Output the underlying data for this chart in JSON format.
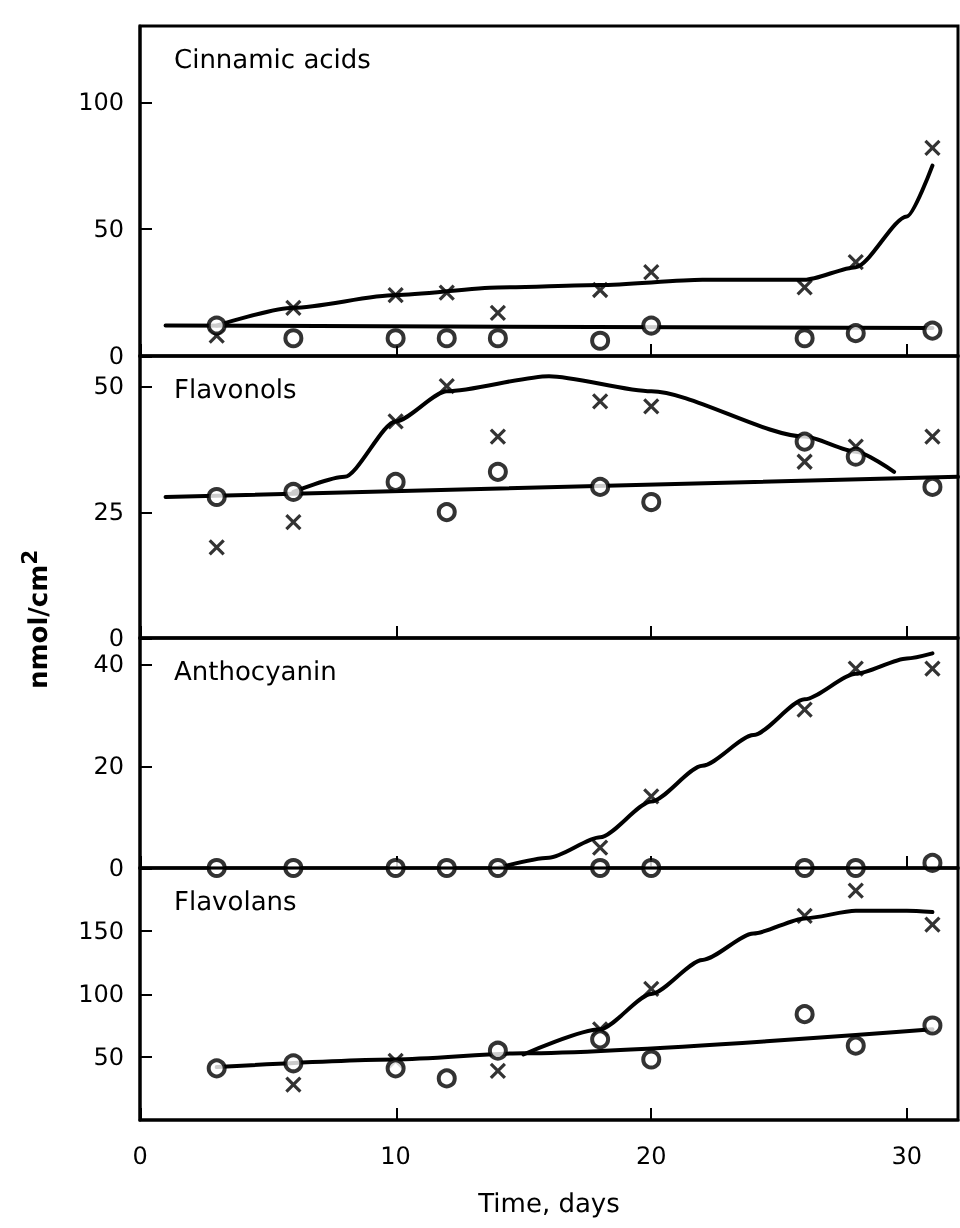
{
  "chart_data": [
    {
      "type": "scatter",
      "title": "Cinnamic acids",
      "x": [
        3,
        6,
        10,
        12,
        14,
        18,
        20,
        26,
        28,
        31
      ],
      "xlim": [
        0,
        32
      ],
      "xticks": [
        0,
        10,
        20,
        30
      ],
      "ylim": [
        0,
        130
      ],
      "yticks": [
        0,
        50,
        100
      ],
      "tick_labels": "y",
      "grid": false,
      "series": [
        {
          "color": "#000000",
          "marker": "cross",
          "values": [
            8,
            19,
            24,
            25,
            17,
            26,
            33,
            27,
            37,
            82
          ]
        },
        {
          "color": "#000000",
          "marker": "circle",
          "values": [
            12,
            7,
            7,
            7,
            7,
            6,
            12,
            7,
            9,
            10
          ]
        },
        {
          "type": "line",
          "color": "#000000",
          "marker": "none",
          "x": [
            3,
            6,
            10,
            14,
            18,
            22,
            26,
            28,
            30,
            31
          ],
          "values": [
            12,
            19,
            24,
            27,
            28,
            30,
            30,
            35,
            55,
            75
          ]
        },
        {
          "type": "line",
          "color": "#000000",
          "marker": "none",
          "x": [
            1,
            31
          ],
          "values": [
            12,
            11
          ]
        }
      ]
    },
    {
      "type": "scatter",
      "title": "Flavonols",
      "ylabel": "nmol/cm$^{2}$",
      "x": [
        3,
        6,
        10,
        12,
        14,
        18,
        20,
        26,
        28,
        31
      ],
      "xlim": [
        0,
        32
      ],
      "xticks": [
        0,
        10,
        20,
        30
      ],
      "ylim": [
        0,
        56
      ],
      "yticks": [
        0,
        25,
        50
      ],
      "tick_labels": "y",
      "grid": false,
      "series": [
        {
          "color": "#000000",
          "marker": "cross",
          "values": [
            18,
            23,
            43,
            50,
            40,
            47,
            46,
            35,
            38,
            40
          ]
        },
        {
          "color": "#000000",
          "marker": "circle",
          "values": [
            28,
            29,
            31,
            25,
            33,
            30,
            27,
            39,
            36,
            30
          ]
        },
        {
          "type": "line",
          "color": "#000000",
          "marker": "none",
          "x": [
            6,
            8,
            10,
            12,
            16,
            20,
            26,
            28,
            29.5
          ],
          "values": [
            29,
            32,
            43,
            49,
            52,
            49,
            40,
            37,
            33
          ]
        },
        {
          "type": "line",
          "color": "#000000",
          "marker": "none",
          "x": [
            1,
            32
          ],
          "values": [
            28,
            32
          ]
        }
      ]
    },
    {
      "type": "scatter",
      "title": "Anthocyanin",
      "x": [
        3,
        6,
        10,
        12,
        14,
        18,
        20,
        26,
        28,
        31
      ],
      "xlim": [
        0,
        32
      ],
      "xticks": [
        0,
        10,
        20,
        30
      ],
      "ylim": [
        0,
        45
      ],
      "yticks": [
        0,
        20,
        40
      ],
      "tick_labels": "y",
      "grid": false,
      "series": [
        {
          "color": "#000000",
          "marker": "cross",
          "values": [
            null,
            null,
            null,
            null,
            null,
            4,
            14,
            31,
            39,
            39
          ]
        },
        {
          "color": "#000000",
          "marker": "circle",
          "values": [
            0,
            0,
            0,
            0,
            0,
            0,
            0,
            0,
            0,
            1
          ]
        },
        {
          "type": "line",
          "color": "#000000",
          "marker": "none",
          "x": [
            14,
            16,
            18,
            20,
            22,
            24,
            26,
            28,
            30,
            31
          ],
          "values": [
            0,
            2,
            6,
            13,
            20,
            26,
            33,
            38,
            41,
            42
          ]
        }
      ]
    },
    {
      "type": "scatter",
      "title": "Flavolans",
      "xlabel": "Time, days",
      "x": [
        3,
        6,
        10,
        12,
        14,
        18,
        20,
        26,
        28,
        31
      ],
      "xlim": [
        0,
        32
      ],
      "xticks": [
        0,
        10,
        20,
        30
      ],
      "ylim": [
        0,
        200
      ],
      "yticks": [
        50,
        100,
        150
      ],
      "grid": false,
      "series": [
        {
          "color": "#000000",
          "marker": "cross",
          "values": [
            null,
            28,
            47,
            null,
            39,
            72,
            104,
            162,
            182,
            155
          ]
        },
        {
          "color": "#000000",
          "marker": "circle",
          "values": [
            41,
            45,
            41,
            33,
            55,
            64,
            48,
            84,
            59,
            75
          ]
        },
        {
          "type": "line",
          "color": "#000000",
          "marker": "none",
          "x": [
            15,
            18,
            20,
            22,
            24,
            26,
            28,
            30,
            31
          ],
          "values": [
            52,
            72,
            100,
            127,
            148,
            160,
            166,
            166,
            165
          ]
        },
        {
          "type": "line",
          "color": "#000000",
          "marker": "none",
          "x": [
            3,
            10,
            15,
            31
          ],
          "values": [
            42,
            48,
            53,
            72
          ]
        }
      ]
    }
  ]
}
